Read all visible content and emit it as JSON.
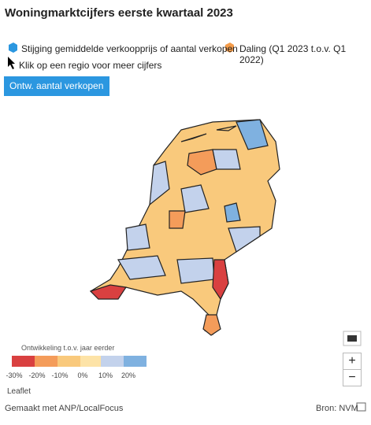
{
  "header": {
    "title": "Woningmarktcijfers eerste kwartaal 2023"
  },
  "legend": {
    "items": [
      "Stijging gemiddelde verkoopprijs of aantal verkopen",
      "Daling (Q1 2023 t.o.v. Q1 2022)",
      "Klik op een regio voor meer cijfers"
    ]
  },
  "button": {
    "label": "Ontw. aantal verkopen"
  },
  "scale": {
    "title": "Ontwikkeling t.o.v. jaar eerder",
    "ticks": [
      "-30%",
      "-20%",
      "-10%",
      "0%",
      "10%",
      "20%"
    ]
  },
  "map": {
    "attribution": "Leaflet",
    "zoom_in": "+",
    "zoom_out": "−"
  },
  "footer": {
    "credit": "Gemaakt met ANP/LocalFocus",
    "source": "Bron: NVM"
  }
}
